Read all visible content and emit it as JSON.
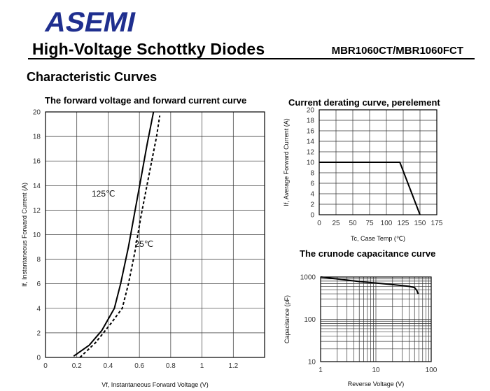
{
  "header": {
    "logo_text": "ASEMI",
    "title": "High-Voltage Schottky Diodes",
    "part_number": "MBR1060CT/MBR1060FCT",
    "section_title": "Characteristic Curves"
  },
  "colors": {
    "logo_blue": "#1f2f8f",
    "ink": "#000000"
  },
  "chart_data": [
    {
      "id": "forward",
      "type": "line",
      "title": "The forward voltage and forward current curve",
      "xlabel": "Vf, Instantaneous Forward Voltage (V)",
      "ylabel": "If, Instantaneous Forward Current (A)",
      "xlim": [
        0,
        1.4
      ],
      "ylim": [
        0,
        20
      ],
      "xticks": [
        0,
        0.2,
        0.4,
        0.6,
        0.8,
        1,
        1.2
      ],
      "xtick_labels": [
        "0",
        "0.2",
        "0.4",
        "0.6",
        "0.8",
        "1",
        "1.2"
      ],
      "yticks": [
        0,
        2,
        4,
        6,
        8,
        10,
        12,
        14,
        16,
        18,
        20
      ],
      "grid": true,
      "series": [
        {
          "name": "125℃",
          "style": "solid",
          "points": [
            [
              0.18,
              0.1
            ],
            [
              0.28,
              1.0
            ],
            [
              0.36,
              2.2
            ],
            [
              0.44,
              4.0
            ],
            [
              0.48,
              6.0
            ],
            [
              0.53,
              9.0
            ],
            [
              0.57,
              11.8
            ],
            [
              0.61,
              14.6
            ],
            [
              0.65,
              17.4
            ],
            [
              0.69,
              20.0
            ]
          ]
        },
        {
          "name": "25℃",
          "style": "dashed",
          "points": [
            [
              0.22,
              0.0
            ],
            [
              0.32,
              1.2
            ],
            [
              0.42,
              2.8
            ],
            [
              0.49,
              4.0
            ],
            [
              0.53,
              6.0
            ],
            [
              0.57,
              8.5
            ],
            [
              0.61,
              11.5
            ],
            [
              0.66,
              14.8
            ],
            [
              0.71,
              18.0
            ],
            [
              0.73,
              19.7
            ]
          ]
        }
      ],
      "annotations": [
        {
          "text": "125℃",
          "x": 0.37,
          "y": 13.1
        },
        {
          "text": "25℃",
          "x": 0.63,
          "y": 9.0
        }
      ]
    },
    {
      "id": "derating",
      "type": "line",
      "title": "Current derating curve, perelement",
      "xlabel": "Tc, Case Temp (℃)",
      "ylabel": "If, Average Forward Current (A)",
      "xlim": [
        0,
        175
      ],
      "ylim": [
        0,
        20
      ],
      "xticks": [
        0,
        25,
        50,
        75,
        100,
        125,
        150,
        175
      ],
      "yticks": [
        0,
        2,
        4,
        6,
        8,
        10,
        12,
        14,
        16,
        18,
        20
      ],
      "grid": true,
      "series": [
        {
          "name": "",
          "style": "solid",
          "points": [
            [
              0,
              10
            ],
            [
              120,
              10
            ],
            [
              150,
              0
            ]
          ]
        }
      ]
    },
    {
      "id": "capacitance",
      "type": "line",
      "title": "The crunode capacitance curve",
      "xlabel": "Reverse Voltage (V)",
      "ylabel": "Capacitance (pF)",
      "xscale": "log",
      "yscale": "log",
      "xlim": [
        1,
        100
      ],
      "ylim": [
        10,
        1000
      ],
      "xticks": [
        1,
        10,
        100
      ],
      "yticks": [
        10,
        100,
        1000
      ],
      "grid": true,
      "series": [
        {
          "name": "",
          "style": "solid",
          "points": [
            [
              1,
              1000
            ],
            [
              2,
              900
            ],
            [
              5,
              780
            ],
            [
              10,
              720
            ],
            [
              20,
              660
            ],
            [
              40,
              600
            ],
            [
              50,
              560
            ],
            [
              55,
              480
            ],
            [
              58,
              400
            ]
          ]
        }
      ]
    }
  ]
}
